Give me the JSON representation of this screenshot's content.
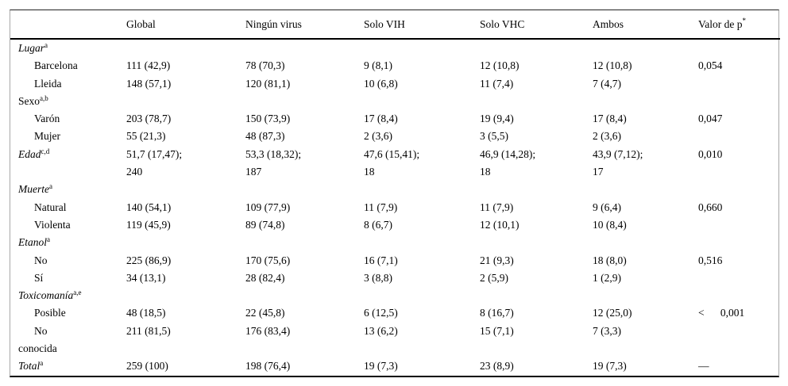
{
  "table": {
    "columns": [
      {
        "text": "",
        "sup": ""
      },
      {
        "text": "Global",
        "sup": ""
      },
      {
        "text": "Ningún virus",
        "sup": ""
      },
      {
        "text": "Solo VIH",
        "sup": ""
      },
      {
        "text": "Solo VHC",
        "sup": ""
      },
      {
        "text": "Ambos",
        "sup": ""
      },
      {
        "text": "Valor de p",
        "sup": "*"
      }
    ],
    "rows": [
      {
        "label": "Lugar",
        "sup": "a",
        "italic": true,
        "indent": false,
        "values": [
          "",
          "",
          "",
          "",
          "",
          ""
        ]
      },
      {
        "label": "Barcelona",
        "sup": "",
        "italic": false,
        "indent": true,
        "values": [
          "111 (42,9)",
          "78 (70,3)",
          "9 (8,1)",
          "12 (10,8)",
          "12 (10,8)",
          "0,054"
        ]
      },
      {
        "label": "Lleida",
        "sup": "",
        "italic": false,
        "indent": true,
        "values": [
          "148 (57,1)",
          "120 (81,1)",
          "10 (6,8)",
          "11 (7,4)",
          "7 (4,7)",
          ""
        ]
      },
      {
        "label": "Sexo",
        "sup": "a,b",
        "italic": false,
        "indent": false,
        "values": [
          "",
          "",
          "",
          "",
          "",
          ""
        ]
      },
      {
        "label": "Varón",
        "sup": "",
        "italic": false,
        "indent": true,
        "values": [
          "203 (78,7)",
          "150 (73,9)",
          "17 (8,4)",
          "19 (9,4)",
          "17 (8,4)",
          "0,047"
        ]
      },
      {
        "label": "Mujer",
        "sup": "",
        "italic": false,
        "indent": true,
        "values": [
          "55 (21,3)",
          "48 (87,3)",
          "2 (3,6)",
          "3 (5,5)",
          "2 (3,6)",
          ""
        ]
      },
      {
        "label": "Edad",
        "sup": "c,d",
        "italic": true,
        "indent": false,
        "values": [
          "51,7 (17,47);\n240",
          "53,3 (18,32);\n187",
          "47,6 (15,41);\n18",
          "46,9 (14,28);\n18",
          "43,9 (7,12);\n17",
          "0,010"
        ]
      },
      {
        "label": "Muerte",
        "sup": "a",
        "italic": true,
        "indent": false,
        "values": [
          "",
          "",
          "",
          "",
          "",
          ""
        ]
      },
      {
        "label": "Natural",
        "sup": "",
        "italic": false,
        "indent": true,
        "values": [
          "140 (54,1)",
          "109 (77,9)",
          "11 (7,9)",
          "11 (7,9)",
          "9 (6,4)",
          "0,660"
        ]
      },
      {
        "label": "Violenta",
        "sup": "",
        "italic": false,
        "indent": true,
        "values": [
          "119 (45,9)",
          "89 (74,8)",
          "8 (6,7)",
          "12 (10,1)",
          "10 (8,4)",
          ""
        ]
      },
      {
        "label": "Etanol",
        "sup": "a",
        "italic": true,
        "indent": false,
        "values": [
          "",
          "",
          "",
          "",
          "",
          ""
        ]
      },
      {
        "label": "No",
        "sup": "",
        "italic": false,
        "indent": true,
        "values": [
          "225 (86,9)",
          "170 (75,6)",
          "16 (7,1)",
          "21 (9,3)",
          "18 (8,0)",
          "0,516"
        ]
      },
      {
        "label": "Sí",
        "sup": "",
        "italic": false,
        "indent": true,
        "values": [
          "34 (13,1)",
          "28 (82,4)",
          "3 (8,8)",
          "2 (5,9)",
          "1 (2,9)",
          ""
        ]
      },
      {
        "label": "Toxicomanía",
        "sup": "a,e",
        "italic": true,
        "indent": false,
        "values": [
          "",
          "",
          "",
          "",
          "",
          ""
        ]
      },
      {
        "label": "Posible",
        "sup": "",
        "italic": false,
        "indent": true,
        "values": [
          "48 (18,5)",
          "22 (45,8)",
          "6 (12,5)",
          "8 (16,7)",
          "12 (25,0)",
          "<      0,001"
        ]
      },
      {
        "label": "No\nconocida",
        "sup": "",
        "italic": false,
        "indent": true,
        "values": [
          "211 (81,5)",
          "176 (83,4)",
          "13 (6,2)",
          "15 (7,1)",
          "7 (3,3)",
          ""
        ]
      },
      {
        "label": "Total",
        "sup": "a",
        "italic": true,
        "indent": false,
        "values": [
          "259 (100)",
          "198 (76,4)",
          "19 (7,3)",
          "23 (8,9)",
          "19 (7,3)",
          "—"
        ]
      }
    ]
  }
}
